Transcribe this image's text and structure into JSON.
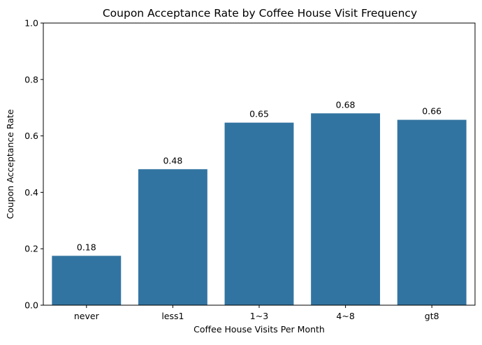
{
  "chart_data": {
    "type": "bar",
    "title": "Coupon Acceptance Rate by Coffee House Visit Frequency",
    "xlabel": "Coffee House Visits Per Month",
    "ylabel": "Coupon Acceptance Rate",
    "categories": [
      "never",
      "less1",
      "1~3",
      "4~8",
      "gt8"
    ],
    "values": [
      0.175,
      0.482,
      0.647,
      0.68,
      0.657
    ],
    "data_labels": [
      "0.18",
      "0.48",
      "0.65",
      "0.68",
      "0.66"
    ],
    "ylim": [
      0,
      1
    ],
    "yticks": [
      0.0,
      0.2,
      0.4,
      0.6,
      0.8,
      1.0
    ],
    "ytick_labels": [
      "0.0",
      "0.2",
      "0.4",
      "0.6",
      "0.8",
      "1.0"
    ],
    "grid": false,
    "bar_color": "#3274a1"
  }
}
